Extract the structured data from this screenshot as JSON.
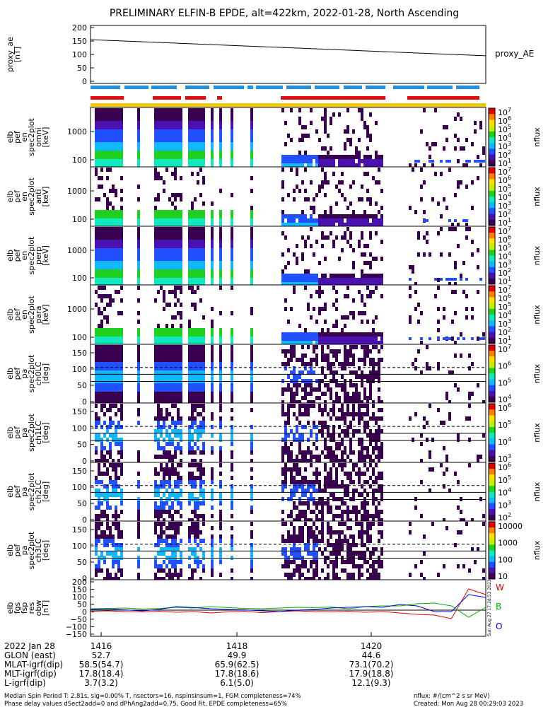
{
  "title": "PRELIMINARY ELFIN-B EPDE, alt=422km, 2022-01-28, North Ascending",
  "colors": {
    "science_bar": "#1f8fe0",
    "attitude_bar": "#e01010",
    "ephem_bar": "#f0c800",
    "trace_W": "#e00000",
    "trace_B": "#00b000",
    "trace_O": "#0000e0"
  },
  "colorbar_stops": [
    "#ffffff",
    "#3a0050",
    "#4a10b0",
    "#2050ff",
    "#10b8ff",
    "#10e8c0",
    "#20d020",
    "#c0f000",
    "#ffe000",
    "#ff8000",
    "#e00000"
  ],
  "panels": [
    {
      "id": "proxy",
      "ylabel": [
        "proxy_ae",
        "[nT]"
      ],
      "right_label": "proxy_AE",
      "ticks": [
        "200",
        "150",
        "100",
        "50",
        "0"
      ]
    },
    {
      "id": "en-omni",
      "ylabel": [
        "elb",
        "pef",
        "en",
        "spec2plot",
        "omni",
        "[keV]"
      ],
      "ticks": [
        "1000",
        "100"
      ],
      "cb_ticks": [
        "10^7",
        "10^6",
        "10^5",
        "10^4",
        "10^3",
        "10^2",
        "10^1"
      ],
      "cb_label": "nflux"
    },
    {
      "id": "en-anti",
      "ylabel": [
        "elb",
        "pef",
        "en",
        "spec2plot",
        "anti",
        "[keV]"
      ],
      "ticks": [
        "1000",
        "100"
      ],
      "cb_ticks": [
        "10^7",
        "10^6",
        "10^5",
        "10^4",
        "10^3",
        "10^2",
        "10^1"
      ],
      "cb_label": "nflux"
    },
    {
      "id": "en-perp",
      "ylabel": [
        "elb",
        "pef",
        "en",
        "spec2plot",
        "perp",
        "[keV]"
      ],
      "ticks": [
        "1000",
        "100"
      ],
      "cb_ticks": [
        "10^7",
        "10^6",
        "10^5",
        "10^4",
        "10^3",
        "10^2",
        "10^1"
      ],
      "cb_label": "nflux"
    },
    {
      "id": "en-para",
      "ylabel": [
        "elb",
        "pef",
        "en",
        "spec2plot",
        "para",
        "[keV]"
      ],
      "ticks": [
        "1000",
        "100"
      ],
      "cb_ticks": [
        "10^7",
        "10^6",
        "10^5",
        "10^4",
        "10^3",
        "10^2",
        "10^1"
      ],
      "cb_label": "nflux"
    },
    {
      "id": "pa-ch0",
      "ylabel": [
        "elb",
        "pef",
        "pa",
        "spec2plot",
        "ch0LC",
        "[deg]"
      ],
      "ticks": [
        "150",
        "100",
        "50",
        "0"
      ],
      "cb_ticks": [
        "10^7",
        "10^6",
        "10^5",
        "10^4"
      ],
      "cb_label": "nflux"
    },
    {
      "id": "pa-ch1",
      "ylabel": [
        "elb",
        "pef",
        "pa",
        "spec2plot",
        "ch1LC",
        "[deg]"
      ],
      "ticks": [
        "150",
        "100",
        "50",
        "0"
      ],
      "cb_ticks": [
        "10^6",
        "10^5",
        "10^4",
        "10^3"
      ],
      "cb_label": "nflux"
    },
    {
      "id": "pa-ch2",
      "ylabel": [
        "elb",
        "pef",
        "pa",
        "spec2plot",
        "ch2LC",
        "[deg]"
      ],
      "ticks": [
        "150",
        "100",
        "50",
        "0"
      ],
      "cb_ticks": [
        "10^6",
        "10^5",
        "10^4",
        "10^3",
        "10^2"
      ],
      "cb_label": "nflux"
    },
    {
      "id": "pa-ch3",
      "ylabel": [
        "elb",
        "pef",
        "pa",
        "spec2plot",
        "ch3LC",
        "[deg]"
      ],
      "ticks": [
        "150",
        "100",
        "50",
        "0"
      ],
      "cb_ticks": [
        "10000",
        "1000",
        "100",
        "10"
      ],
      "cb_label": "nflux"
    },
    {
      "id": "fgs",
      "ylabel": [
        "elb",
        "fgs",
        "fsp",
        "res",
        "obw",
        "[nT]"
      ],
      "ticks": [
        "200",
        "150",
        "100",
        "50",
        "0",
        "−50",
        "−100",
        "−150"
      ],
      "legend": [
        "W",
        "B",
        "O"
      ],
      "side_stamp": "Sun Aug 27 17:28:53 2023"
    }
  ],
  "chart_data": [
    {
      "type": "line",
      "title": "proxy_AE",
      "ylabel": "proxy_ae [nT]",
      "ylim": [
        0,
        200
      ],
      "x": [
        1415.0,
        1421.9
      ],
      "series": [
        {
          "name": "proxy_AE",
          "values": [
            155,
            95
          ]
        }
      ]
    },
    {
      "type": "heatmap",
      "title": "omni",
      "ylabel": "[keV]",
      "ylog": true,
      "ylim": [
        60,
        7000
      ],
      "zlim": [
        "10^1",
        "10^7"
      ]
    },
    {
      "type": "heatmap",
      "title": "anti",
      "ylabel": "[keV]",
      "ylog": true,
      "ylim": [
        60,
        7000
      ],
      "zlim": [
        "10^1",
        "10^7"
      ]
    },
    {
      "type": "heatmap",
      "title": "perp",
      "ylabel": "[keV]",
      "ylog": true,
      "ylim": [
        60,
        7000
      ],
      "zlim": [
        "10^1",
        "10^7"
      ]
    },
    {
      "type": "heatmap",
      "title": "para",
      "ylabel": "[keV]",
      "ylog": true,
      "ylim": [
        60,
        7000
      ],
      "zlim": [
        "10^1",
        "10^7"
      ]
    },
    {
      "type": "heatmap",
      "title": "ch0LC",
      "ylabel": "[deg]",
      "ylim": [
        0,
        180
      ],
      "zlim": [
        "10^4",
        "10^7"
      ]
    },
    {
      "type": "heatmap",
      "title": "ch1LC",
      "ylabel": "[deg]",
      "ylim": [
        0,
        180
      ],
      "zlim": [
        "10^3",
        "10^6"
      ]
    },
    {
      "type": "heatmap",
      "title": "ch2LC",
      "ylabel": "[deg]",
      "ylim": [
        0,
        180
      ],
      "zlim": [
        "10^2",
        "10^6"
      ]
    },
    {
      "type": "heatmap",
      "title": "ch3LC",
      "ylabel": "[deg]",
      "ylim": [
        0,
        180
      ],
      "zlim": [
        "10",
        "10000"
      ]
    },
    {
      "type": "line",
      "title": "fgs_fsp_res_obw",
      "ylabel": "[nT]",
      "ylim": [
        -170,
        200
      ],
      "x": [
        1415.0,
        1415.3,
        1415.6,
        1415.9,
        1416.2,
        1416.5,
        1416.8,
        1417.1,
        1417.4,
        1417.7,
        1418.0,
        1418.3,
        1418.6,
        1418.9,
        1419.2,
        1419.5,
        1419.8,
        1420.1,
        1420.4,
        1420.7,
        1421.0,
        1421.3,
        1421.6,
        1421.9
      ],
      "series": [
        {
          "name": "W",
          "values": [
            -8,
            -5,
            -10,
            -12,
            -8,
            -15,
            -10,
            -20,
            -12,
            -8,
            -18,
            -10,
            -5,
            -10,
            -12,
            -8,
            -15,
            -10,
            -20,
            -30,
            -35,
            -60,
            150,
            110
          ]
        },
        {
          "name": "B",
          "values": [
            10,
            12,
            15,
            8,
            12,
            20,
            15,
            25,
            18,
            12,
            10,
            15,
            20,
            18,
            22,
            10,
            25,
            30,
            30,
            45,
            50,
            30,
            -50,
            20
          ]
        },
        {
          "name": "O",
          "values": [
            5,
            8,
            2,
            -5,
            5,
            25,
            18,
            10,
            5,
            2,
            -5,
            -10,
            0,
            5,
            15,
            20,
            25,
            20,
            40,
            30,
            -10,
            -10,
            110,
            90
          ]
        }
      ]
    }
  ],
  "xaxis": {
    "row_labels": [
      "2022 Jan 28",
      "GLON (east)",
      "MLAT-igrf(dip)",
      "MLT-igrf(dip)",
      "L-igrf(dip)"
    ],
    "columns": [
      {
        "time": "1416",
        "vals": [
          "52.7",
          "58.5(54.7)",
          "17.8(18.4)",
          "3.7(3.2)"
        ]
      },
      {
        "time": "1418",
        "vals": [
          "49.9",
          "65.9(62.5)",
          "17.8(18.6)",
          "6.1(5.0)"
        ]
      },
      {
        "time": "1420",
        "vals": [
          "44.6",
          "73.1(70.2)",
          "17.9(18.8)",
          "12.1(9.3)"
        ]
      }
    ]
  },
  "footer": {
    "line1": "Median Spin Period T: 2.81s, sig=0.00% T, nsectors=16, nspinsinsum=1, FGM completeness=74%",
    "line2": "Phase delay values dSect2add=0 and dPhAng2add=0.75, Good Fit, EPDE completeness=65%",
    "units": "nflux: #/(cm^2 s sr MeV)",
    "created": "Created: Mon Aug 28 00:29:03 2023"
  }
}
